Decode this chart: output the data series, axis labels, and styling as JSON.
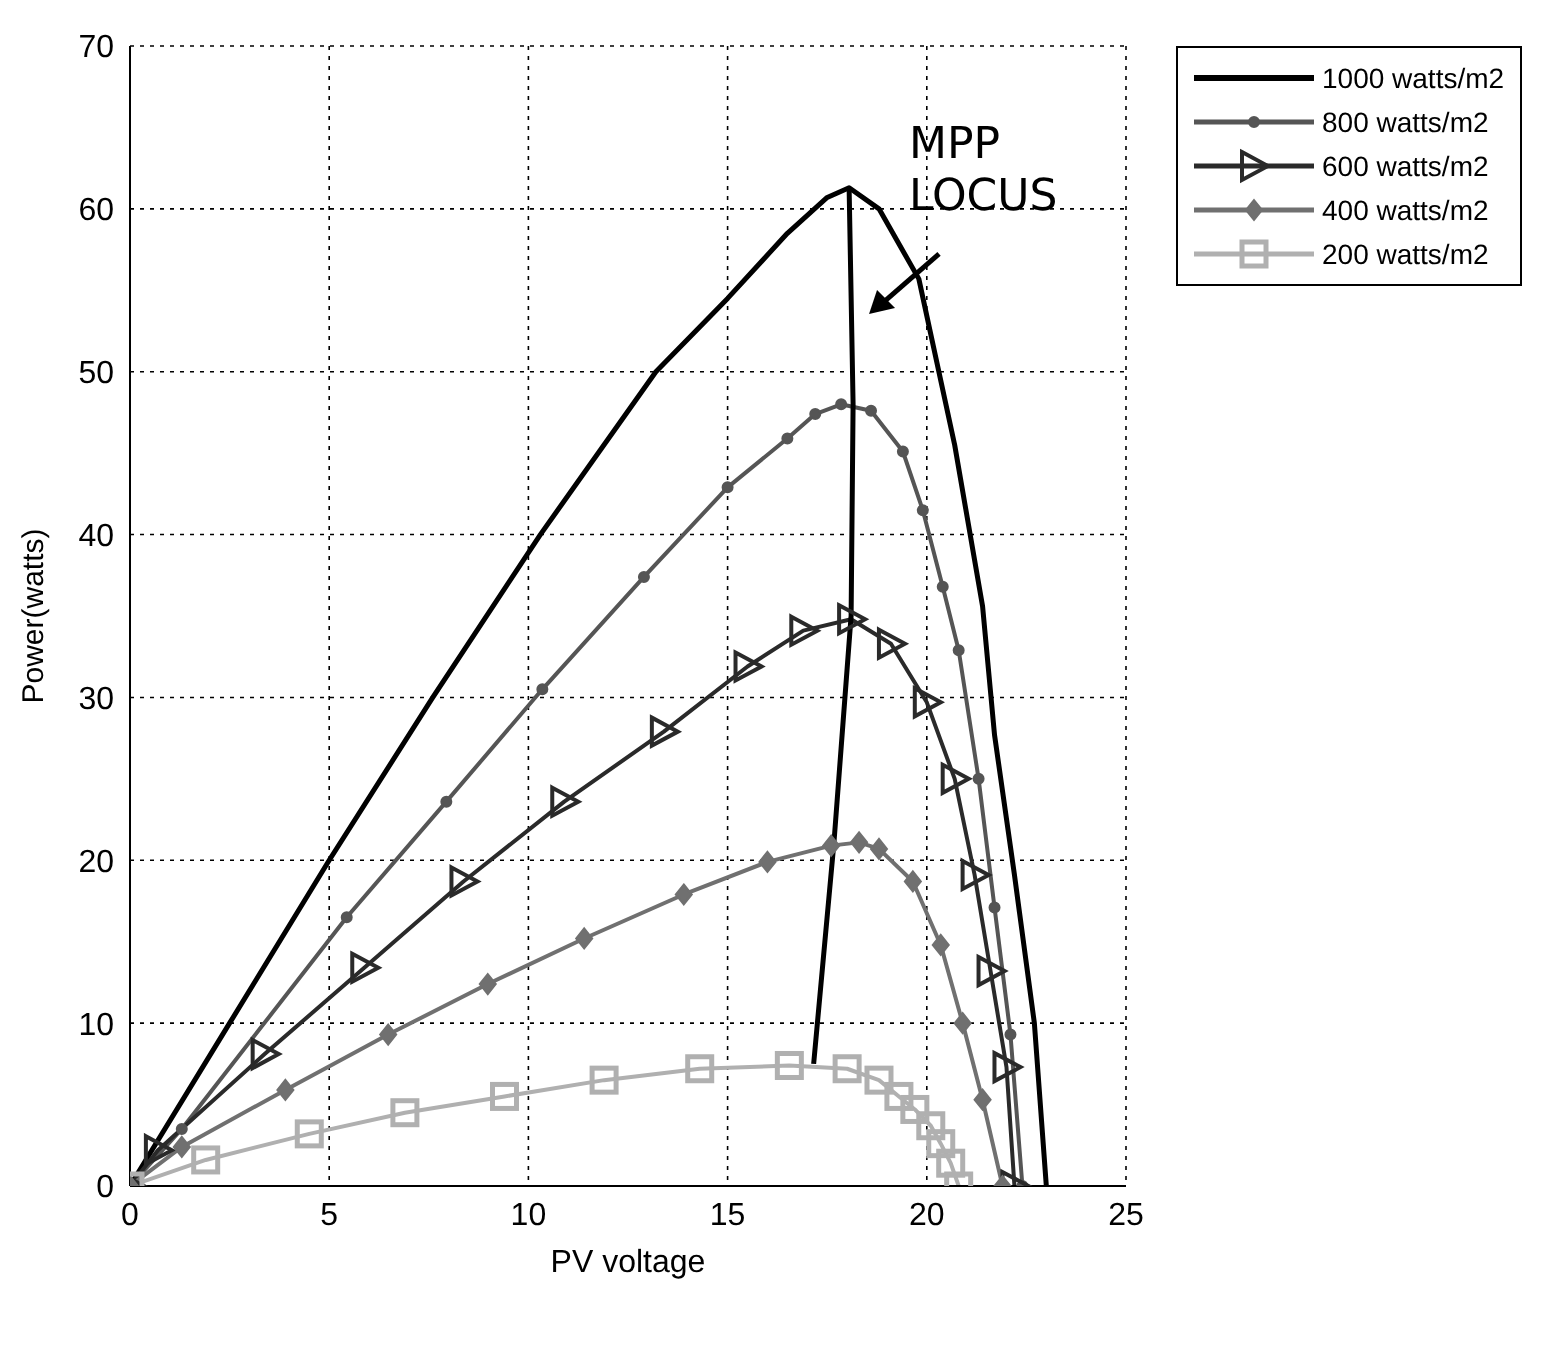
{
  "chart_data": {
    "type": "line",
    "xlabel": "PV voltage",
    "ylabel": "Power(watts)",
    "xlim": [
      0,
      25
    ],
    "ylim": [
      0,
      70
    ],
    "xticks": [
      0,
      5,
      10,
      15,
      20,
      25
    ],
    "yticks": [
      0,
      10,
      20,
      30,
      40,
      50,
      60,
      70
    ],
    "grid": true,
    "legend": "top right",
    "annotations": [
      "MPP LOCUS"
    ],
    "series": [
      {
        "name": "1000 watts/m2",
        "color": "#000000",
        "marker": "none",
        "x": [
          0,
          2.5,
          5,
          7.6,
          10.3,
          13.2,
          15,
          16.5,
          17.5,
          18.05,
          18.8,
          19.8,
          20.7,
          21.4,
          21.7,
          22.2,
          22.7,
          23
        ],
        "values": [
          0,
          10,
          20,
          30,
          40,
          50,
          54.5,
          58.5,
          60.7,
          61.3,
          60,
          55.7,
          45.5,
          35.6,
          27.7,
          19.1,
          10,
          0
        ]
      },
      {
        "name": "800 watts/m2",
        "color": "#555555",
        "marker": "circle",
        "x": [
          0,
          1.3,
          5.44,
          7.94,
          10.35,
          12.9,
          15,
          16.5,
          17.2,
          17.85,
          18.6,
          19.4,
          19.9,
          20.4,
          20.8,
          21.3,
          21.7,
          22.1,
          22.4
        ],
        "values": [
          0,
          3.5,
          16.5,
          23.6,
          30.5,
          37.4,
          42.9,
          45.9,
          47.4,
          48,
          47.6,
          45.1,
          41.5,
          36.8,
          32.9,
          25,
          17.1,
          9.3,
          0
        ]
      },
      {
        "name": "600 watts/m2",
        "color": "#2a2a2a",
        "marker": "triangle",
        "x": [
          0,
          0.7,
          3.38,
          5.88,
          8.37,
          10.9,
          13.4,
          15.5,
          16.9,
          18.1,
          19.1,
          20,
          20.7,
          21.2,
          21.6,
          22,
          22.2
        ],
        "values": [
          0,
          2.2,
          8.1,
          13.4,
          18.7,
          23.6,
          27.9,
          31.9,
          34.1,
          34.8,
          33.3,
          29.7,
          25,
          19.1,
          13.2,
          7.3,
          0
        ]
      },
      {
        "name": "400 watts/m2",
        "color": "#707070",
        "marker": "diamond",
        "x": [
          0,
          1.3,
          3.9,
          6.48,
          8.98,
          11.4,
          13.9,
          16,
          17.6,
          18.3,
          18.8,
          19.65,
          20.35,
          20.9,
          21.4,
          21.9
        ],
        "values": [
          0,
          2.4,
          5.9,
          9.3,
          12.4,
          15.2,
          17.9,
          19.9,
          20.9,
          21.1,
          20.7,
          18.7,
          14.8,
          10,
          5.3,
          0
        ]
      },
      {
        "name": "200 watts/m2",
        "color": "#b0b0b0",
        "marker": "square",
        "x": [
          0,
          1.9,
          4.5,
          6.9,
          9.4,
          11.9,
          14.3,
          16.55,
          18,
          18.8,
          19.3,
          19.7,
          20.1,
          20.35,
          20.6,
          20.8
        ],
        "values": [
          0,
          1.6,
          3.2,
          4.5,
          5.5,
          6.5,
          7.2,
          7.4,
          7.2,
          6.5,
          5.5,
          4.7,
          3.7,
          2.6,
          1.4,
          0
        ]
      },
      {
        "color": "#000000",
        "marker": "none",
        "x": [
          17.16,
          17.67,
          18.1,
          18.15,
          18.05
        ],
        "values": [
          7.5,
          21.1,
          35,
          48,
          61.3
        ]
      }
    ]
  }
}
